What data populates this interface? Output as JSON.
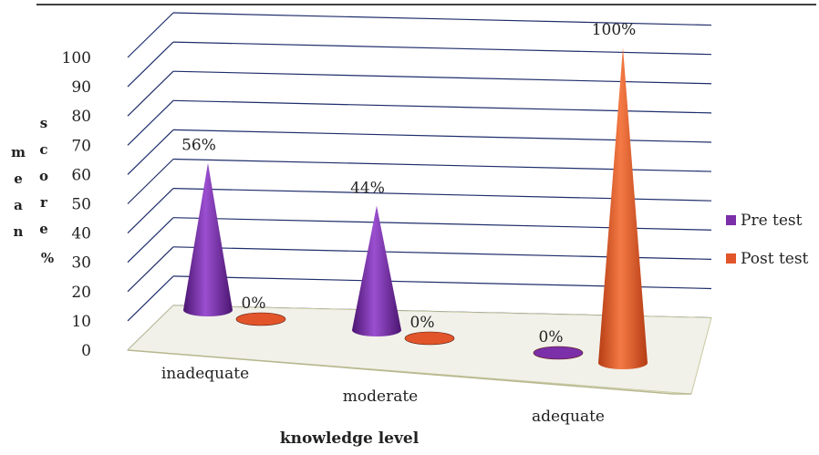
{
  "chart_data": {
    "type": "bar",
    "subtype": "3d-cone",
    "categories": [
      "inadequate",
      "moderate",
      "adequate"
    ],
    "series": [
      {
        "name": "Pre test",
        "values": [
          56,
          44,
          0
        ],
        "labels": [
          "56%",
          "44%",
          "0%"
        ],
        "color": "#7b2fa8"
      },
      {
        "name": "Post test",
        "values": [
          0,
          0,
          100
        ],
        "labels": [
          "0%",
          "0%",
          "100%"
        ],
        "color": "#e2552a"
      }
    ],
    "y_ticks": [
      "0",
      "10",
      "20",
      "30",
      "40",
      "50",
      "60",
      "70",
      "80",
      "90",
      "100"
    ],
    "ylim": [
      0,
      100
    ],
    "xlabel": "knowledge level",
    "ylabel": "mean score %",
    "legend_position": "right",
    "grid": true,
    "grid_color": "#1f2e6b"
  }
}
